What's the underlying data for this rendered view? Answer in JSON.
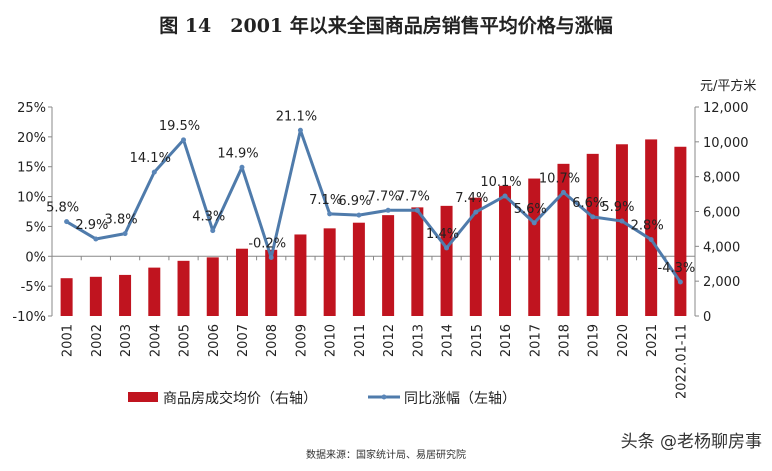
{
  "title": "图 14　2001 年以来全国商品房销售平均价格与涨幅",
  "source": "数据来源：国家统计局、易居研究院",
  "watermark": "头条 @老杨聊房事",
  "colors": {
    "bar": "#c0141f",
    "line": "#4f7bab",
    "marker": "#5a86b8"
  },
  "chart_data": {
    "type": "bar+line",
    "categories": [
      "2001",
      "2002",
      "2003",
      "2004",
      "2005",
      "2006",
      "2007",
      "2008",
      "2009",
      "2010",
      "2011",
      "2012",
      "2013",
      "2014",
      "2015",
      "2016",
      "2017",
      "2018",
      "2019",
      "2020",
      "2021",
      "2022.01-11"
    ],
    "series": [
      {
        "name": "商品房成交均价（右轴）",
        "type": "bar",
        "axis": "right",
        "values": [
          2170,
          2250,
          2359,
          2778,
          3168,
          3367,
          3864,
          3800,
          4681,
          5032,
          5357,
          5791,
          6237,
          6324,
          6793,
          7476,
          7892,
          8737,
          9310,
          9860,
          10139,
          9717
        ]
      },
      {
        "name": "同比涨幅（左轴）",
        "type": "line",
        "axis": "left",
        "values": [
          5.8,
          2.9,
          3.8,
          14.1,
          19.5,
          4.3,
          14.9,
          -0.2,
          21.1,
          7.1,
          6.9,
          7.7,
          7.7,
          1.4,
          7.4,
          10.1,
          5.6,
          10.7,
          6.6,
          5.9,
          2.8,
          -4.3
        ],
        "labels": [
          "5.8%",
          "2.9%",
          "3.8%",
          "14.1%",
          "19.5%",
          "4.3%",
          "14.9%",
          "-0.2%",
          "21.1%",
          "7.1%",
          "6.9%",
          "7.7%",
          "7.7%",
          "1.4%",
          "7.4%",
          "10.1%",
          "5.6%",
          "10.7%",
          "6.6%",
          "5.9%",
          "2.8%",
          "-4.3%"
        ]
      }
    ],
    "left_axis": {
      "ylim": [
        -10,
        25
      ],
      "ticks": [
        "25%",
        "20%",
        "15%",
        "10%",
        "5%",
        "0%",
        "-5%",
        "-10%"
      ],
      "tick_values": [
        25,
        20,
        15,
        10,
        5,
        0,
        -5,
        -10
      ]
    },
    "right_axis": {
      "label": "元/平方米",
      "ylim": [
        0,
        12000
      ],
      "ticks": [
        "12,000",
        "10,000",
        "8,000",
        "6,000",
        "4,000",
        "2,000",
        "0"
      ],
      "tick_values": [
        12000,
        10000,
        8000,
        6000,
        4000,
        2000,
        0
      ]
    },
    "grid": false,
    "legend_position": "bottom"
  }
}
